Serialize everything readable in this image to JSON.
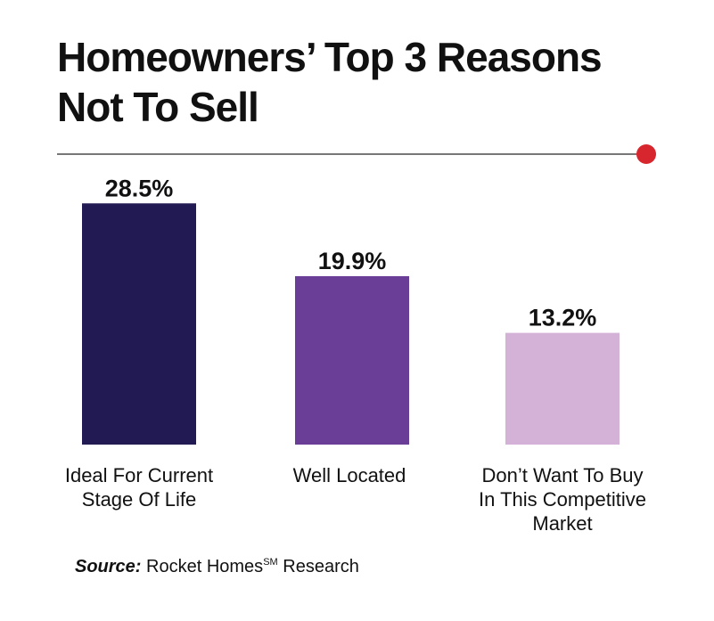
{
  "title": {
    "line1": "Homeowners’ Top 3 Reasons",
    "line2": "Not To Sell"
  },
  "accent_color": "#d7262d",
  "source": {
    "label": "Source:",
    "text": "Rocket Homes",
    "superscript": "SM",
    "suffix": "Research"
  },
  "chart_data": {
    "type": "bar",
    "categories": [
      [
        "Ideal For Current",
        "Stage Of Life"
      ],
      [
        "Well Located"
      ],
      [
        "Don’t Want To Buy",
        "In This Competitive",
        "Market"
      ]
    ],
    "values": [
      28.5,
      19.9,
      13.2
    ],
    "value_labels": [
      "28.5%",
      "19.9%",
      "13.2%"
    ],
    "colors": [
      "#221a52",
      "#6a3d96",
      "#d4b1d6"
    ],
    "ylim": [
      0,
      30
    ],
    "grid": false,
    "legend": "none"
  }
}
